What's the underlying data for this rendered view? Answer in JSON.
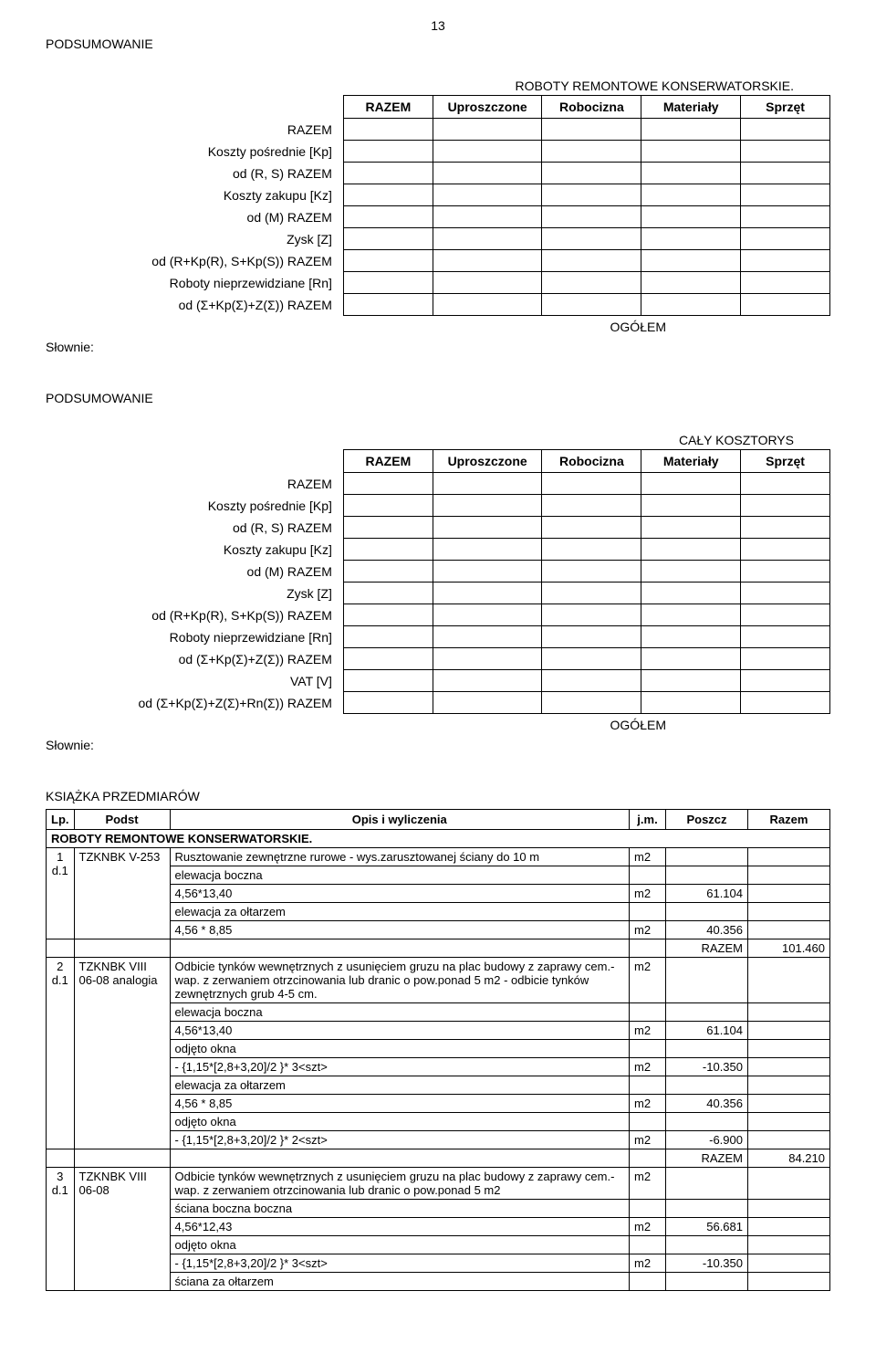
{
  "page_number": "13",
  "heading1": "PODSUMOWANIE",
  "summary1": {
    "title": "ROBOTY REMONTOWE KONSERWATORSKIE.",
    "headers": [
      "RAZEM",
      "Uproszczone",
      "Robocizna",
      "Materiały",
      "Sprzęt"
    ],
    "rows": [
      "RAZEM",
      "Koszty pośrednie [Kp]",
      "od (R, S)  RAZEM",
      "Koszty zakupu [Kz]",
      "od (M)  RAZEM",
      "Zysk [Z]",
      "od (R+Kp(R), S+Kp(S))  RAZEM",
      "Roboty nieprzewidziane [Rn]",
      "od (Σ+Kp(Σ)+Z(Σ))  RAZEM"
    ],
    "ogolem": "OGÓŁEM",
    "slownie": "Słownie:"
  },
  "heading2": "PODSUMOWANIE",
  "summary2": {
    "title": "CAŁY KOSZTORYS",
    "headers": [
      "RAZEM",
      "Uproszczone",
      "Robocizna",
      "Materiały",
      "Sprzęt"
    ],
    "rows": [
      "RAZEM",
      "Koszty pośrednie [Kp]",
      "od (R, S)  RAZEM",
      "Koszty zakupu [Kz]",
      "od (M)  RAZEM",
      "Zysk [Z]",
      "od (R+Kp(R), S+Kp(S))  RAZEM",
      "Roboty nieprzewidziane [Rn]",
      "od (Σ+Kp(Σ)+Z(Σ))  RAZEM",
      "VAT [V]",
      "od (Σ+Kp(Σ)+Z(Σ)+Rn(Σ))  RAZEM"
    ],
    "ogolem": "OGÓŁEM",
    "slownie": "Słownie:"
  },
  "book": {
    "heading": "KSIĄŻKA PRZEDMIARÓW",
    "columns": [
      "Lp.",
      "Podst",
      "Opis i wyliczenia",
      "j.m.",
      "Poszcz",
      "Razem"
    ],
    "section_title": "ROBOTY REMONTOWE KONSERWATORSKIE.",
    "items": [
      {
        "lp": "1 d.1",
        "podst": "TZKNBK V-253",
        "opis_main": "Rusztowanie zewnętrzne rurowe - wys.zarusztowanej ściany do 10 m",
        "jm_main": "m2",
        "lines": [
          {
            "text": "elewacja boczna"
          },
          {
            "text": "4,56*13,40",
            "jm": "m2",
            "poszcz": "61.104"
          },
          {
            "text": "elewacja za ołtarzem"
          },
          {
            "text": "4,56 * 8,85",
            "jm": "m2",
            "poszcz": "40.356"
          }
        ],
        "razem_label": "RAZEM",
        "razem_value": "101.460"
      },
      {
        "lp": "2 d.1",
        "podst": "TZKNBK VIII 06-08 analogia",
        "opis_main": "Odbicie tynków wewnętrznych z usunięciem gruzu na plac budowy z zaprawy cem.-wap. z zerwaniem otrzcinowania lub dranic o pow.ponad 5 m2 - odbicie tynków zewnętrznych grub 4-5 cm.",
        "jm_main": "m2",
        "lines": [
          {
            "text": "elewacja boczna"
          },
          {
            "text": "4,56*13,40",
            "jm": "m2",
            "poszcz": "61.104"
          },
          {
            "text": "odjęto okna"
          },
          {
            "text": "- {1,15*[2,8+3,20]/2 }* 3<szt>",
            "jm": "m2",
            "poszcz": "-10.350"
          },
          {
            "text": "elewacja za ołtarzem"
          },
          {
            "text": "4,56 * 8,85",
            "jm": "m2",
            "poszcz": "40.356"
          },
          {
            "text": "odjęto okna"
          },
          {
            "text": "- {1,15*[2,8+3,20]/2 }* 2<szt>",
            "jm": "m2",
            "poszcz": "-6.900"
          }
        ],
        "razem_label": "RAZEM",
        "razem_value": "84.210"
      },
      {
        "lp": "3 d.1",
        "podst": "TZKNBK VIII 06-08",
        "opis_main": "Odbicie tynków wewnętrznych z usunięciem gruzu na plac budowy z zaprawy cem.-wap. z zerwaniem otrzcinowania lub dranic o pow.ponad 5 m2",
        "jm_main": "m2",
        "lines": [
          {
            "text": "ściana boczna boczna"
          },
          {
            "text": "4,56*12,43",
            "jm": "m2",
            "poszcz": "56.681"
          },
          {
            "text": "odjęto okna"
          },
          {
            "text": "- {1,15*[2,8+3,20]/2 }* 3<szt>",
            "jm": "m2",
            "poszcz": "-10.350"
          },
          {
            "text": "ściana za ołtarzem"
          }
        ]
      }
    ]
  }
}
